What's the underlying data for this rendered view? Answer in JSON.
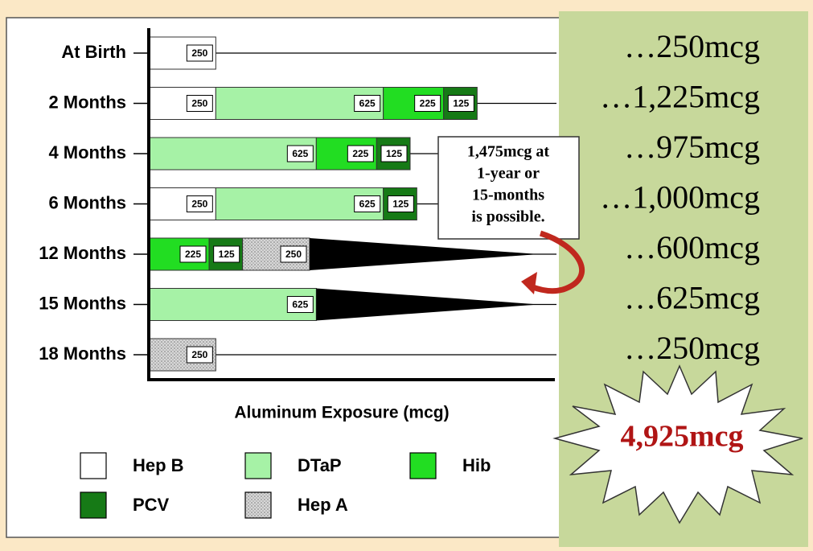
{
  "chart_data": {
    "type": "stacked_bar_horizontal",
    "categories": [
      "At Birth",
      "2 Months",
      "4 Months",
      "6 Months",
      "12 Months",
      "15 Months",
      "18 Months"
    ],
    "series": [
      {
        "name": "Hep B",
        "color": "#ffffff",
        "values": [
          250,
          250,
          null,
          250,
          null,
          null,
          null
        ]
      },
      {
        "name": "DTaP",
        "color": "#a6f2a6",
        "values": [
          null,
          625,
          625,
          625,
          null,
          625,
          null
        ]
      },
      {
        "name": "Hib",
        "color": "#22dd22",
        "values": [
          null,
          225,
          225,
          null,
          225,
          null,
          null
        ]
      },
      {
        "name": "PCV",
        "color": "#167a16",
        "values": [
          null,
          125,
          125,
          125,
          125,
          null,
          null
        ]
      },
      {
        "name": "Hep A",
        "color": "#cccccc",
        "pattern": "dotted",
        "values": [
          null,
          null,
          null,
          null,
          250,
          null,
          250
        ]
      }
    ],
    "xlim": [
      0,
      1500
    ],
    "xlabel": "Aluminum Exposure (mcg)",
    "totals": [
      "…250mcg",
      "…1,225mcg",
      "…975mcg",
      "…1,000mcg",
      "…600mcg",
      "…625mcg",
      "…250mcg"
    ],
    "callout": [
      "1,475mcg at",
      "1-year or",
      "15-months",
      "is possible."
    ],
    "grand_total": "4,925mcg"
  }
}
